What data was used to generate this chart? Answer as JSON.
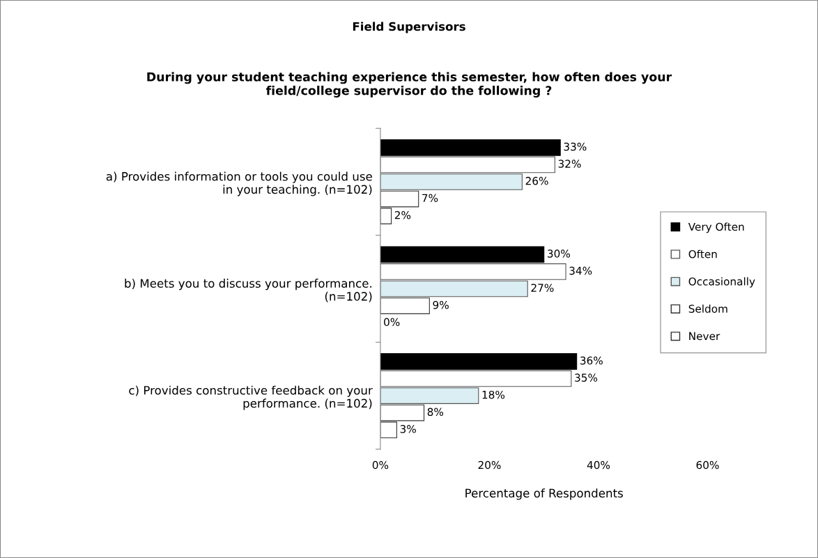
{
  "chart_data": {
    "type": "bar",
    "orientation": "horizontal",
    "title": "Field Supervisors",
    "subtitle": "During your student teaching experience this semester, how often does your\nfield/college supervisor do the following ?",
    "xlabel": "Percentage of Respondents",
    "categories": [
      "a) Provides information or tools you could use\nin your teaching. (n=102)",
      "b) Meets you to discuss your performance.\n(n=102)",
      "c) Provides constructive feedback on your\nperformance. (n=102)"
    ],
    "series": [
      {
        "name": "Very Often",
        "color": "#000000",
        "values": [
          33,
          30,
          36
        ],
        "value_labels": [
          "33%",
          "30%",
          "36%"
        ]
      },
      {
        "name": "Often",
        "color": "#ffffff",
        "values": [
          32,
          34,
          35
        ],
        "value_labels": [
          "32%",
          "34%",
          "35%"
        ]
      },
      {
        "name": "Occasionally",
        "color": "#daeef3",
        "values": [
          26,
          27,
          18
        ],
        "value_labels": [
          "26%",
          "27%",
          "18%"
        ]
      },
      {
        "name": "Seldom",
        "color": "#ffffff",
        "values": [
          7,
          9,
          8
        ],
        "value_labels": [
          "7%",
          "9%",
          "8%"
        ]
      },
      {
        "name": "Never",
        "color": "#ffffff",
        "values": [
          2,
          0,
          3
        ],
        "value_labels": [
          "2%",
          "0%",
          "3%"
        ]
      }
    ],
    "xlim": [
      0,
      60
    ],
    "xticks": [
      {
        "value": 0,
        "label": "0%"
      },
      {
        "value": 20,
        "label": "20%"
      },
      {
        "value": 40,
        "label": "40%"
      },
      {
        "value": 60,
        "label": "60%"
      }
    ],
    "grid": false,
    "legend": "right"
  }
}
